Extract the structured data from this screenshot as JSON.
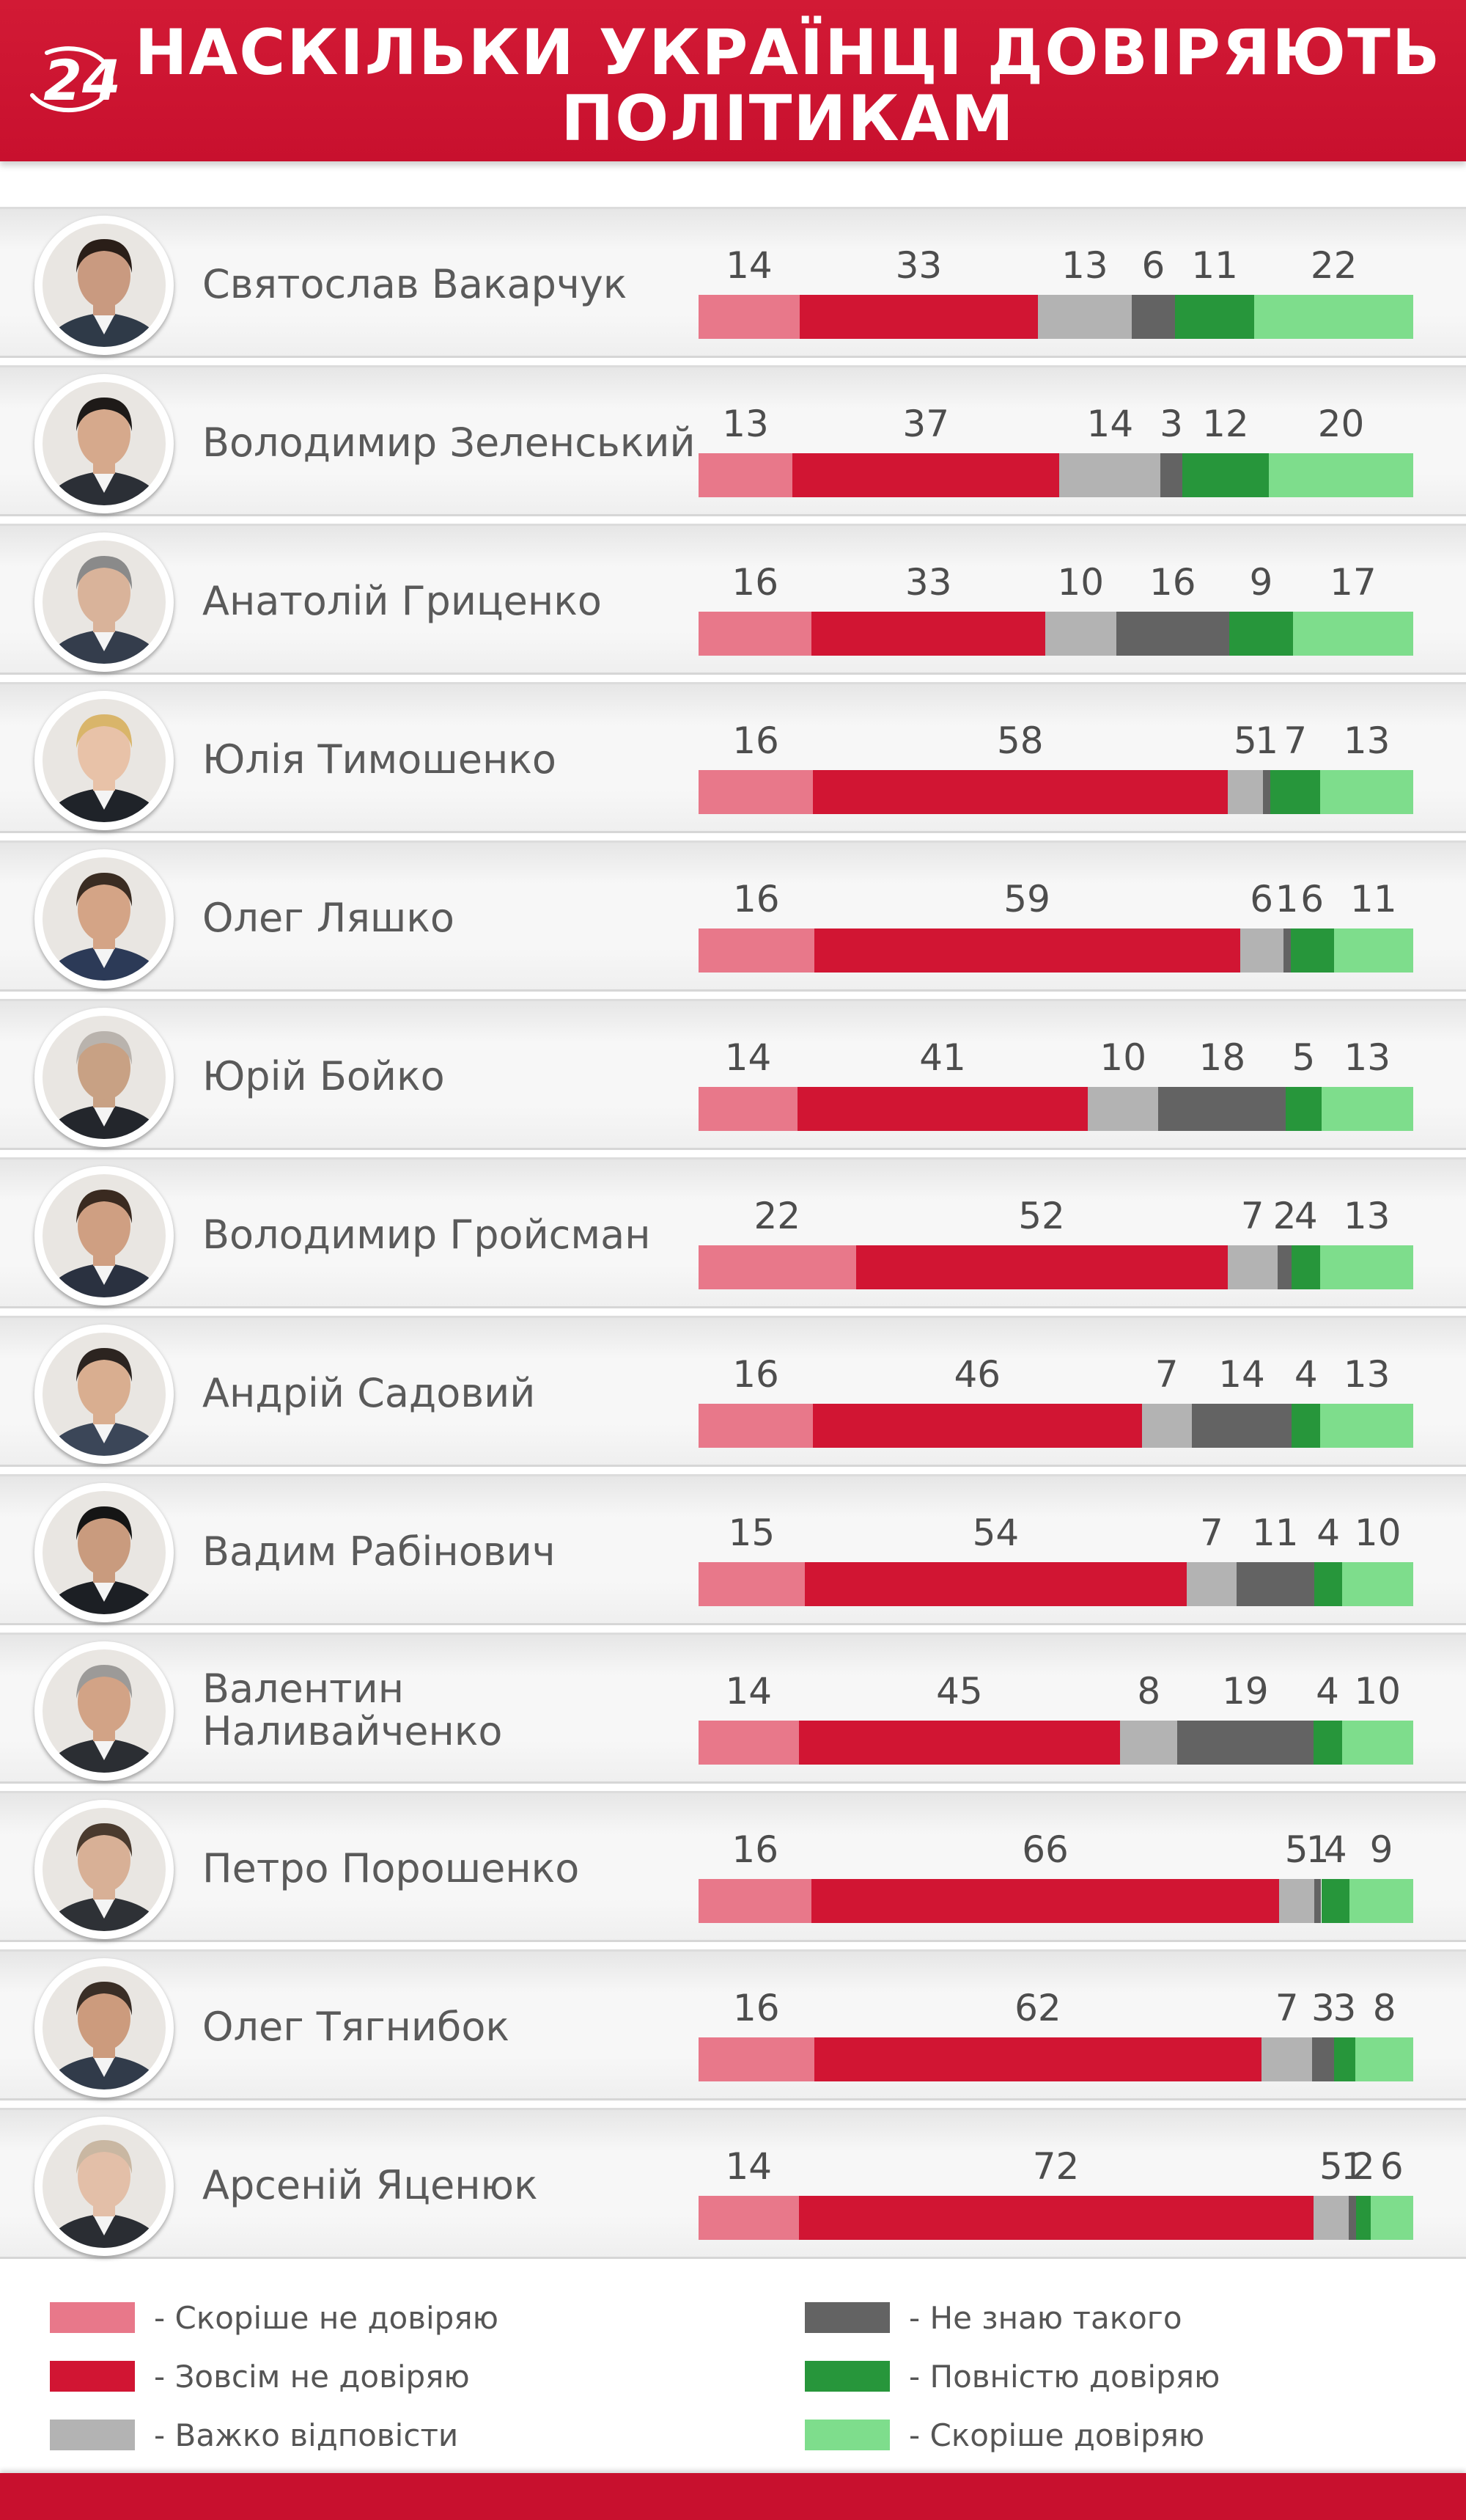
{
  "header": {
    "logo_text": "24",
    "title_line1": "НАСКІЛЬКИ УКРАЇНЦІ ДОВІРЯЮТЬ",
    "title_line2": "ПОЛІТИКАМ"
  },
  "colors": {
    "header": "#c8102e",
    "rather_distrust": "#e8788a",
    "fully_distrust": "#d11533",
    "hard_to_say": "#b3b3b3",
    "dont_know": "#636363",
    "fully_trust": "#27963b",
    "rather_trust": "#7edd8c"
  },
  "chart_data": {
    "type": "bar",
    "stacked": true,
    "orientation": "horizontal",
    "categories": [
      "Святослав Вакарчук",
      "Володимир Зеленський",
      "Анатолій Гриценко",
      "Юлія Тимошенко",
      "Олег Ляшко",
      "Юрій Бойко",
      "Володимир Гройсман",
      "Андрій Садовий",
      "Вадим Рабінович",
      "Валентин Наливайченко",
      "Петро Порошенко",
      "Олег Тягнибок",
      "Арсеній Яценюк"
    ],
    "series": [
      {
        "name": "- Скоріше не довіряю",
        "color": "#e8788a",
        "values": [
          14,
          13,
          16,
          16,
          16,
          14,
          22,
          16,
          15,
          14,
          16,
          16,
          14
        ]
      },
      {
        "name": "- Зовсім не довіряю",
        "color": "#d11533",
        "values": [
          33,
          37,
          33,
          58,
          59,
          41,
          52,
          46,
          54,
          45,
          66,
          62,
          72
        ]
      },
      {
        "name": "- Важко відповісти",
        "color": "#b3b3b3",
        "values": [
          13,
          14,
          10,
          5,
          6,
          10,
          7,
          7,
          7,
          8,
          5,
          7,
          5
        ]
      },
      {
        "name": "- Не знаю такого",
        "color": "#636363",
        "values": [
          6,
          3,
          16,
          1,
          1,
          18,
          2,
          14,
          11,
          19,
          1,
          3,
          1
        ]
      },
      {
        "name": "- Повністю довіряю",
        "color": "#27963b",
        "values": [
          11,
          12,
          9,
          7,
          6,
          5,
          4,
          4,
          4,
          4,
          4,
          3,
          2
        ]
      },
      {
        "name": "- Скоріше довіряю",
        "color": "#7edd8c",
        "values": [
          22,
          20,
          17,
          13,
          11,
          13,
          13,
          13,
          10,
          10,
          9,
          8,
          6
        ]
      }
    ],
    "legend_position": "bottom"
  }
}
